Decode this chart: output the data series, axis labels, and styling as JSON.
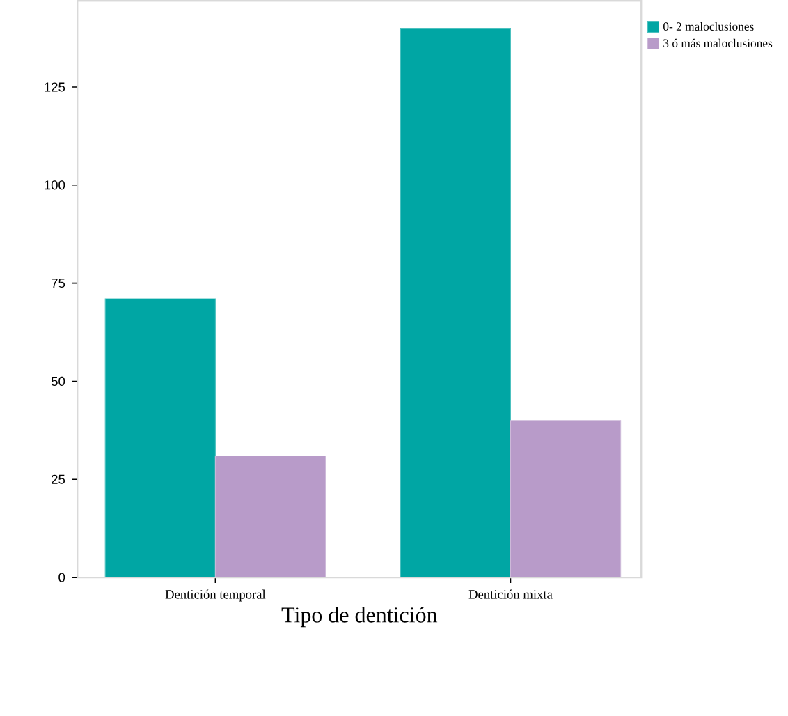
{
  "chart_data": {
    "type": "bar",
    "xlabel": "Tipo de dentición",
    "categories": [
      "Dentición temporal",
      "Dentición mixta"
    ],
    "series": [
      {
        "name": "0- 2 maloclusiones",
        "color": "#00a6a4",
        "values": [
          71,
          140
        ]
      },
      {
        "name": "3 ó más maloclusiones",
        "color": "#b89bc9",
        "values": [
          31,
          40
        ]
      }
    ],
    "ylim": [
      0,
      147
    ],
    "yticks": [
      0,
      25,
      50,
      75,
      100,
      125
    ],
    "grid": false,
    "legend": "right"
  }
}
